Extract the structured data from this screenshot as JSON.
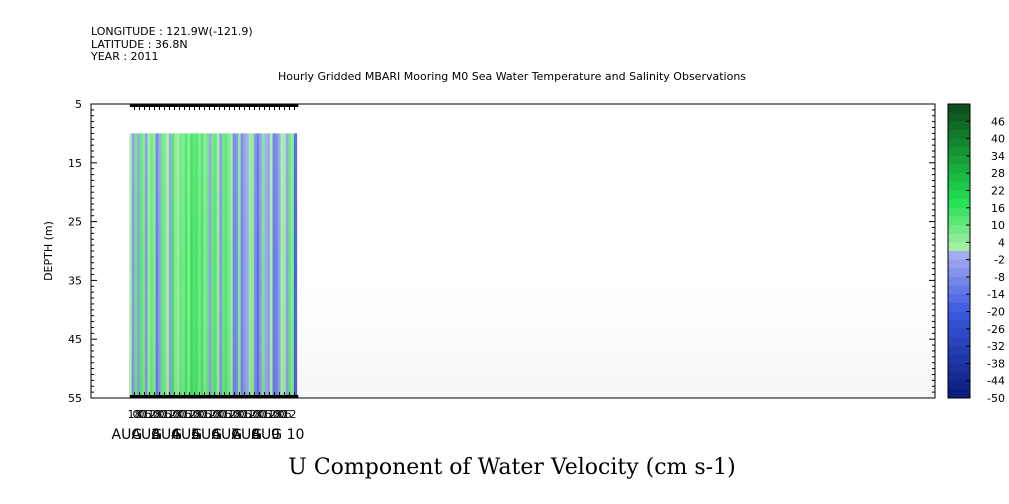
{
  "header": {
    "longitude": "LONGITUDE : 121.9W(-121.9)",
    "latitude": "LATITUDE : 36.8N",
    "year": "YEAR : 2011",
    "title": "Hourly Gridded MBARI Mooring M0 Sea Water Temperature and Salinity Observations"
  },
  "chart_data": {
    "type": "heatmap",
    "title": "Hourly Gridded MBARI Mooring M0 Sea Water Temperature and Salinity Observations",
    "variable_label": "U Component of Water Velocity (cm s-1)",
    "ylabel": "DEPTH (m)",
    "ylim": [
      5,
      55
    ],
    "y_inverted": true,
    "y_ticks": [
      "5",
      "15",
      "25",
      "35",
      "45",
      "55"
    ],
    "data_depth_range": [
      10,
      55
    ],
    "x_hour_ticks": [
      "18",
      "00",
      "06",
      "12",
      "18",
      "00",
      "06",
      "12",
      "18",
      "00",
      "06",
      "12",
      "18",
      "00",
      "06",
      "12",
      "18",
      "00",
      "06",
      "12",
      "18",
      "00",
      "06",
      "12",
      "18",
      "00",
      "06",
      "12",
      "18",
      "00",
      "06",
      "12"
    ],
    "x_day_labels": [
      "AUG  3",
      "AUG  4",
      "AUG  5",
      "AUG  6",
      "AUG  7",
      "AUG  8",
      "AUG  9",
      "AUG 10"
    ],
    "x_day_index": [
      3,
      4,
      5,
      6,
      7,
      8,
      9,
      10
    ],
    "data_time_start_hours": 0,
    "data_time_end_hours": 201,
    "hour_blocks_approx_cm_s": [
      0,
      -6,
      10,
      -4,
      12,
      8,
      -6,
      4,
      10,
      6,
      -12,
      -4,
      10,
      8,
      2,
      -4,
      14,
      6,
      4,
      10,
      8,
      14,
      6,
      16,
      12,
      14,
      8,
      14,
      6,
      10,
      -4,
      10,
      12,
      4,
      -6,
      10,
      12,
      8,
      4,
      -10,
      -8,
      6,
      -10,
      -4,
      -2,
      4,
      6,
      -8,
      -14,
      -4,
      8,
      -2,
      -4,
      2,
      -12,
      -10,
      -4,
      2,
      4,
      -4,
      10,
      6,
      -18
    ],
    "colorbar": {
      "labels": [
        "46",
        "40",
        "34",
        "28",
        "22",
        "16",
        "10",
        "4",
        "-2",
        "-8",
        "-14",
        "-20",
        "-26",
        "-32",
        "-38",
        "-44",
        "-50"
      ],
      "min": -50,
      "max": 52,
      "step": 3,
      "colors": {
        "neg_strong": "#0a1a7a",
        "neg_mid": "#3a5ae0",
        "neg_light": "#a8aef0",
        "zero_light": "#b8f0b0",
        "pos_mid": "#22e052",
        "pos_strong": "#0a4a18"
      }
    },
    "grid": false,
    "legend_placement": "right"
  }
}
